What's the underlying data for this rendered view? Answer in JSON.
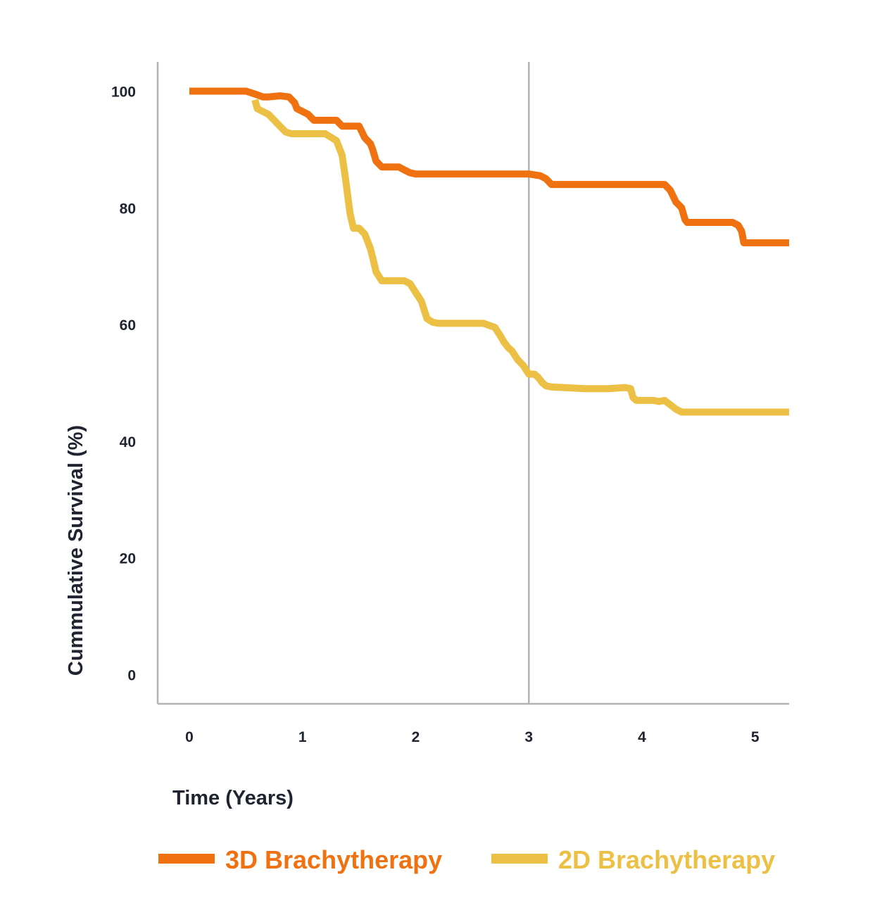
{
  "chart_data": {
    "type": "line",
    "title": "",
    "xlabel": "Time (Years)",
    "ylabel": "Cummulative Survival (%)",
    "xlim": [
      -0.28,
      5.3
    ],
    "ylim": [
      -5,
      105
    ],
    "x_ticks": [
      "0",
      "1",
      "2",
      "3",
      "4",
      "5"
    ],
    "y_ticks": [
      "100",
      "80",
      "60",
      "40",
      "20",
      "0"
    ],
    "reference_line_x": 3,
    "grid": false,
    "legend_position": "bottom",
    "series": [
      {
        "name": "3D Brachytherapy",
        "color": "#f07110",
        "x": [
          0.0,
          0.5,
          0.58,
          0.65,
          0.7,
          0.8,
          0.88,
          0.93,
          0.95,
          1.05,
          1.1,
          1.15,
          1.2,
          1.3,
          1.35,
          1.4,
          1.5,
          1.55,
          1.6,
          1.62,
          1.65,
          1.7,
          1.75,
          1.8,
          1.85,
          1.9,
          1.95,
          2.0,
          2.05,
          2.1,
          2.5,
          3.0,
          3.1,
          3.15,
          3.2,
          3.3,
          3.6,
          4.2,
          4.25,
          4.3,
          4.35,
          4.38,
          4.4,
          4.5,
          4.8,
          4.85,
          4.88,
          4.9,
          5.0,
          5.3
        ],
        "y": [
          100,
          100,
          99.5,
          99,
          99,
          99.2,
          99,
          98,
          97,
          96,
          95,
          95,
          95,
          95,
          94,
          94,
          94,
          92,
          91,
          90,
          88,
          87,
          87,
          87,
          87,
          86.5,
          86,
          85.8,
          85.8,
          85.8,
          85.8,
          85.8,
          85.5,
          85,
          84,
          84,
          84,
          84,
          83,
          81,
          80,
          78,
          77.5,
          77.5,
          77.5,
          77,
          76,
          74,
          74,
          74
        ]
      },
      {
        "name": "2D Brachytherapy",
        "color": "#ecc044",
        "x": [
          0.58,
          0.6,
          0.65,
          0.7,
          0.75,
          0.8,
          0.85,
          0.9,
          1.0,
          1.1,
          1.2,
          1.3,
          1.35,
          1.38,
          1.42,
          1.45,
          1.5,
          1.55,
          1.6,
          1.62,
          1.65,
          1.7,
          1.73,
          1.8,
          1.85,
          1.9,
          1.95,
          2.0,
          2.05,
          2.1,
          2.15,
          2.2,
          2.4,
          2.6,
          2.7,
          2.75,
          2.78,
          2.82,
          2.85,
          2.9,
          2.95,
          3.0,
          3.05,
          3.08,
          3.12,
          3.15,
          3.2,
          3.5,
          3.7,
          3.85,
          3.9,
          3.92,
          3.95,
          4.05,
          4.1,
          4.15,
          4.2,
          4.3,
          4.35,
          4.5,
          4.8,
          5.0,
          5.3
        ],
        "y": [
          98.5,
          97,
          96.5,
          96,
          95,
          94,
          93,
          92.7,
          92.7,
          92.7,
          92.7,
          91.5,
          89,
          85,
          79,
          76.5,
          76.5,
          75.5,
          73,
          71.5,
          69,
          67.5,
          67.5,
          67.5,
          67.5,
          67.5,
          67,
          65.5,
          64,
          61,
          60.4,
          60.2,
          60.2,
          60.2,
          59.5,
          58,
          57,
          56,
          55.5,
          54,
          53,
          51.5,
          51.5,
          51,
          50,
          49.5,
          49.3,
          49,
          49,
          49.2,
          49,
          47.5,
          47,
          47,
          47,
          46.8,
          47,
          45.5,
          45,
          45,
          45,
          45,
          45
        ]
      }
    ]
  }
}
